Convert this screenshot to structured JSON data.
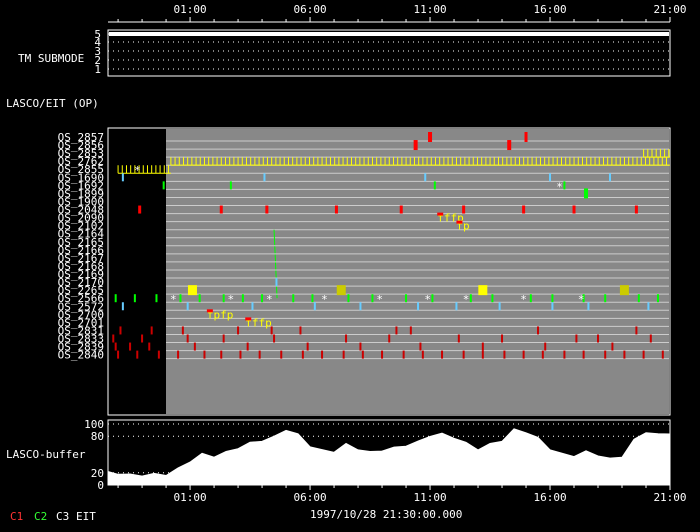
{
  "chart_data": {
    "type": "timeline",
    "x_axis": {
      "range_hours": [
        -2.42,
        21.0
      ],
      "tick_hours": [
        1,
        6,
        11,
        16,
        21
      ],
      "tick_labels": [
        "01:00",
        "06:00",
        "11:00",
        "16:00",
        "21:00"
      ]
    },
    "tm_submode": {
      "label": "TM SUBMODE",
      "levels": [
        "5",
        "4",
        "3",
        "2",
        "1"
      ],
      "value": 5
    },
    "lasco_eit_label": "LASCO/EIT (OP)",
    "rows": [
      {
        "name": "OS_2857",
        "events": [
          {
            "t": 11.0,
            "c": "#ff0000",
            "w": 4,
            "h": 10
          },
          {
            "t": 15.0,
            "c": "#ff0000",
            "w": 3,
            "h": 10
          }
        ]
      },
      {
        "name": "OS_2856",
        "events": [
          {
            "t": 10.4,
            "c": "#ff0000",
            "w": 4,
            "h": 10
          },
          {
            "t": 14.3,
            "c": "#ff0000",
            "w": 4,
            "h": 10
          }
        ]
      },
      {
        "name": "OS_2853",
        "events": [
          {
            "t": 19.9,
            "c": "#ffff00",
            "span": [
              19.9,
              21.0
            ],
            "striped": true
          }
        ]
      },
      {
        "name": "OS_2762",
        "events": [
          {
            "t": 0.2,
            "c": "#ffff00",
            "span": [
              0.2,
              21.0
            ],
            "striped": true
          }
        ]
      },
      {
        "name": "OS_2855",
        "events": [
          {
            "t": -0.8,
            "c": "#ffff00",
            "span": [
              -2.0,
              0.2
            ],
            "striped": true
          },
          {
            "t": -1.2,
            "c": "#ffffff",
            "star": true
          }
        ]
      },
      {
        "name": "OS_1690",
        "events": [
          {
            "t": -1.8,
            "c": "#66ccff"
          },
          {
            "t": 4.1,
            "c": "#66ccff"
          },
          {
            "t": 10.8,
            "c": "#66ccff"
          },
          {
            "t": 16.0,
            "c": "#66ccff"
          },
          {
            "t": 18.5,
            "c": "#66ccff"
          }
        ]
      },
      {
        "name": "OS_1692",
        "events": [
          {
            "t": -0.1,
            "c": "#00ff00"
          },
          {
            "t": 2.7,
            "c": "#00ff00"
          },
          {
            "t": 11.2,
            "c": "#00ff00"
          },
          {
            "t": 16.6,
            "c": "#00ff00"
          },
          {
            "t": 16.4,
            "c": "#ffffff",
            "star": true
          }
        ]
      },
      {
        "name": "OS_1899",
        "events": [
          {
            "t": 17.5,
            "c": "#00ff00",
            "w": 4,
            "h": 10
          }
        ]
      },
      {
        "name": "OS_1900",
        "events": []
      },
      {
        "name": "OS_2048",
        "events": [
          {
            "t": -1.1,
            "c": "#ff0000",
            "w": 3
          },
          {
            "t": 2.3,
            "c": "#ff0000",
            "w": 3
          },
          {
            "t": 4.2,
            "c": "#ff0000",
            "w": 3
          },
          {
            "t": 7.1,
            "c": "#ff0000",
            "w": 3
          },
          {
            "t": 9.8,
            "c": "#ff0000",
            "w": 3
          },
          {
            "t": 12.4,
            "c": "#ff0000",
            "w": 3
          },
          {
            "t": 14.9,
            "c": "#ff0000",
            "w": 3
          },
          {
            "t": 17.0,
            "c": "#ff0000",
            "w": 3
          },
          {
            "t": 19.6,
            "c": "#ff0000",
            "w": 3
          }
        ]
      },
      {
        "name": "OS_2090",
        "events": [
          {
            "t": 11.3,
            "c": "#ffff00",
            "label": "fffp"
          }
        ]
      },
      {
        "name": "OS_2102",
        "events": [
          {
            "t": 12.1,
            "c": "#ffff00",
            "label": "fp"
          }
        ]
      },
      {
        "name": "OS_2164",
        "events": [
          {
            "t": 4.5,
            "c": "#00ff00",
            "span_rows": 8
          }
        ]
      },
      {
        "name": "OS_2165",
        "events": []
      },
      {
        "name": "OS_2166",
        "events": []
      },
      {
        "name": "OS_2167",
        "events": []
      },
      {
        "name": "OS_2168",
        "events": []
      },
      {
        "name": "OS_2169",
        "events": []
      },
      {
        "name": "OS_2170",
        "events": [
          {
            "t": 4.6,
            "c": "#66ccff"
          }
        ]
      },
      {
        "name": "OS_2265",
        "events": [
          {
            "t": 1.1,
            "c": "#ffff00",
            "w": 9,
            "h": 10
          },
          {
            "t": 7.3,
            "c": "#cccc00",
            "w": 9,
            "h": 10
          },
          {
            "t": 13.2,
            "c": "#ffff00",
            "w": 9,
            "h": 10
          },
          {
            "t": 19.1,
            "c": "#cccc00",
            "w": 9,
            "h": 10
          }
        ]
      },
      {
        "name": "OS_2566",
        "events": [
          {
            "t": -2.1,
            "c": "#00ff00"
          },
          {
            "t": -1.3,
            "c": "#00ff00"
          },
          {
            "t": -0.4,
            "c": "#00ff00"
          },
          {
            "t": 0.6,
            "c": "#00ff00"
          },
          {
            "t": 1.4,
            "c": "#00ff00"
          },
          {
            "t": 2.4,
            "c": "#00ff00"
          },
          {
            "t": 3.2,
            "c": "#00ff00"
          },
          {
            "t": 4.0,
            "c": "#00ff00"
          },
          {
            "t": 5.3,
            "c": "#00ff00"
          },
          {
            "t": 6.1,
            "c": "#00ff00"
          },
          {
            "t": 7.6,
            "c": "#00ff00"
          },
          {
            "t": 8.6,
            "c": "#00ff00"
          },
          {
            "t": 10.0,
            "c": "#00ff00"
          },
          {
            "t": 11.1,
            "c": "#00ff00"
          },
          {
            "t": 12.7,
            "c": "#00ff00"
          },
          {
            "t": 13.6,
            "c": "#00ff00"
          },
          {
            "t": 15.2,
            "c": "#00ff00"
          },
          {
            "t": 16.1,
            "c": "#00ff00"
          },
          {
            "t": 17.4,
            "c": "#00ff00"
          },
          {
            "t": 18.3,
            "c": "#00ff00"
          },
          {
            "t": 19.7,
            "c": "#00ff00"
          },
          {
            "t": 20.5,
            "c": "#00ff00"
          },
          {
            "t": 0.3,
            "c": "#ffffff",
            "star": true
          },
          {
            "t": 2.7,
            "c": "#ffffff",
            "star": true
          },
          {
            "t": 4.3,
            "c": "#ffffff",
            "star": true
          },
          {
            "t": 6.6,
            "c": "#ffffff",
            "star": true
          },
          {
            "t": 8.9,
            "c": "#ffffff",
            "star": true
          },
          {
            "t": 10.9,
            "c": "#ffffff",
            "star": true
          },
          {
            "t": 12.5,
            "c": "#ffffff",
            "star": true
          },
          {
            "t": 14.9,
            "c": "#ffffff",
            "star": true
          },
          {
            "t": 17.3,
            "c": "#ffffff",
            "star": true
          }
        ]
      },
      {
        "name": "OS_2572",
        "events": [
          {
            "t": -1.8,
            "c": "#66ccff"
          },
          {
            "t": 0.9,
            "c": "#66ccff"
          },
          {
            "t": 3.6,
            "c": "#66ccff"
          },
          {
            "t": 6.2,
            "c": "#66ccff"
          },
          {
            "t": 8.1,
            "c": "#66ccff"
          },
          {
            "t": 10.5,
            "c": "#66ccff"
          },
          {
            "t": 12.1,
            "c": "#66ccff"
          },
          {
            "t": 13.9,
            "c": "#66ccff"
          },
          {
            "t": 16.1,
            "c": "#66ccff"
          },
          {
            "t": 17.6,
            "c": "#66ccff"
          },
          {
            "t": 20.1,
            "c": "#66ccff"
          }
        ]
      },
      {
        "name": "OS_2700",
        "events": [
          {
            "t": 1.7,
            "c": "#ffff00",
            "label": "fpfp"
          }
        ]
      },
      {
        "name": "OS_2701",
        "events": [
          {
            "t": 3.3,
            "c": "#ffff00",
            "label": "fffp"
          }
        ]
      },
      {
        "name": "OS_2831",
        "events": [
          {
            "t": -1.9,
            "c": "#cc0000"
          },
          {
            "t": -0.6,
            "c": "#cc0000"
          },
          {
            "t": 0.7,
            "c": "#cc0000"
          },
          {
            "t": 3.0,
            "c": "#cc0000"
          },
          {
            "t": 4.4,
            "c": "#cc0000"
          },
          {
            "t": 5.6,
            "c": "#cc0000"
          },
          {
            "t": 9.6,
            "c": "#cc0000"
          },
          {
            "t": 10.2,
            "c": "#cc0000"
          },
          {
            "t": 15.5,
            "c": "#cc0000"
          },
          {
            "t": 19.6,
            "c": "#cc0000"
          }
        ]
      },
      {
        "name": "OS_2833",
        "events": [
          {
            "t": -2.2,
            "c": "#cc0000"
          },
          {
            "t": -1.0,
            "c": "#cc0000"
          },
          {
            "t": 0.9,
            "c": "#cc0000"
          },
          {
            "t": 2.4,
            "c": "#cc0000"
          },
          {
            "t": 4.5,
            "c": "#cc0000"
          },
          {
            "t": 7.5,
            "c": "#cc0000"
          },
          {
            "t": 9.3,
            "c": "#cc0000"
          },
          {
            "t": 12.2,
            "c": "#cc0000"
          },
          {
            "t": 14.0,
            "c": "#cc0000"
          },
          {
            "t": 17.1,
            "c": "#cc0000"
          },
          {
            "t": 18.0,
            "c": "#cc0000"
          },
          {
            "t": 20.2,
            "c": "#cc0000"
          }
        ]
      },
      {
        "name": "OS_2839",
        "events": [
          {
            "t": -2.1,
            "c": "#cc0000"
          },
          {
            "t": -1.5,
            "c": "#cc0000"
          },
          {
            "t": -0.7,
            "c": "#cc0000"
          },
          {
            "t": 1.2,
            "c": "#cc0000"
          },
          {
            "t": 3.4,
            "c": "#cc0000"
          },
          {
            "t": 5.9,
            "c": "#cc0000"
          },
          {
            "t": 8.1,
            "c": "#cc0000"
          },
          {
            "t": 10.6,
            "c": "#cc0000"
          },
          {
            "t": 13.2,
            "c": "#cc0000"
          },
          {
            "t": 15.8,
            "c": "#cc0000"
          },
          {
            "t": 18.6,
            "c": "#cc0000"
          }
        ]
      },
      {
        "name": "OS_2840",
        "events": [
          {
            "t": -2.0,
            "c": "#cc0000"
          },
          {
            "t": -1.2,
            "c": "#cc0000"
          },
          {
            "t": -0.3,
            "c": "#cc0000"
          },
          {
            "t": 0.5,
            "c": "#cc0000"
          },
          {
            "t": 1.6,
            "c": "#cc0000"
          },
          {
            "t": 2.3,
            "c": "#cc0000"
          },
          {
            "t": 3.1,
            "c": "#cc0000"
          },
          {
            "t": 3.9,
            "c": "#cc0000"
          },
          {
            "t": 4.8,
            "c": "#cc0000"
          },
          {
            "t": 5.7,
            "c": "#cc0000"
          },
          {
            "t": 6.5,
            "c": "#cc0000"
          },
          {
            "t": 7.4,
            "c": "#cc0000"
          },
          {
            "t": 8.2,
            "c": "#cc0000"
          },
          {
            "t": 9.0,
            "c": "#cc0000"
          },
          {
            "t": 9.9,
            "c": "#cc0000"
          },
          {
            "t": 10.7,
            "c": "#cc0000"
          },
          {
            "t": 11.5,
            "c": "#cc0000"
          },
          {
            "t": 12.4,
            "c": "#cc0000"
          },
          {
            "t": 13.2,
            "c": "#cc0000"
          },
          {
            "t": 14.1,
            "c": "#cc0000"
          },
          {
            "t": 14.9,
            "c": "#cc0000"
          },
          {
            "t": 15.7,
            "c": "#cc0000"
          },
          {
            "t": 16.6,
            "c": "#cc0000"
          },
          {
            "t": 17.4,
            "c": "#cc0000"
          },
          {
            "t": 18.3,
            "c": "#cc0000"
          },
          {
            "t": 19.1,
            "c": "#cc0000"
          },
          {
            "t": 19.9,
            "c": "#cc0000"
          },
          {
            "t": 20.7,
            "c": "#cc0000"
          }
        ]
      }
    ],
    "buffer": {
      "label": "LASCO-buffer",
      "y_ticks": [
        "100",
        "80",
        "20",
        "0"
      ],
      "y_tick_values": [
        100,
        80,
        20,
        0
      ],
      "x": [
        -2.42,
        -2.0,
        -1.5,
        -1.0,
        -0.5,
        0.0,
        0.5,
        1.0,
        1.5,
        2.0,
        2.5,
        3.0,
        3.5,
        4.0,
        4.5,
        5.0,
        5.5,
        6.0,
        6.5,
        7.0,
        7.5,
        8.0,
        8.5,
        9.0,
        9.5,
        10.0,
        10.5,
        11.0,
        11.5,
        12.0,
        12.5,
        13.0,
        13.5,
        14.0,
        14.5,
        15.0,
        15.5,
        16.0,
        16.5,
        17.0,
        17.5,
        18.0,
        18.5,
        19.0,
        19.5,
        20.0,
        20.5,
        21.0
      ],
      "y": [
        22,
        20,
        18,
        17,
        19,
        18,
        28,
        40,
        52,
        48,
        55,
        62,
        70,
        74,
        80,
        92,
        84,
        65,
        58,
        56,
        68,
        60,
        55,
        58,
        62,
        66,
        72,
        82,
        85,
        79,
        70,
        60,
        68,
        74,
        92,
        88,
        78,
        60,
        52,
        49,
        56,
        50,
        44,
        48,
        75,
        88,
        84,
        86
      ]
    },
    "legend": [
      {
        "text": "C1",
        "color": "#ff3333"
      },
      {
        "text": "C2",
        "color": "#33ff33"
      },
      {
        "text": "C3",
        "color": "#ffffff"
      },
      {
        "text": "EIT",
        "color": "#ffffff"
      }
    ],
    "timestamp": "1997/10/28 21:30:00.000"
  }
}
